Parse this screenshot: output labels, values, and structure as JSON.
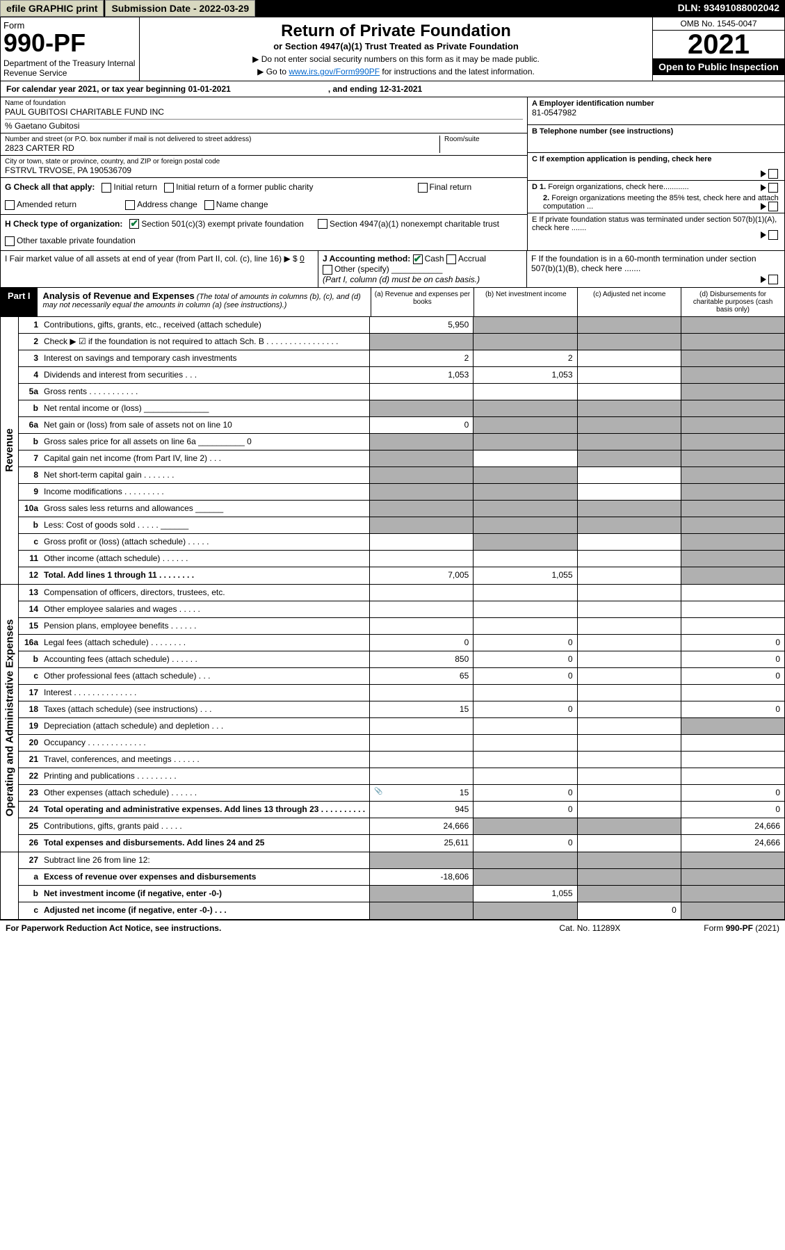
{
  "topbar": {
    "efile": "efile GRAPHIC print",
    "subdate_lbl": "Submission Date - 2022-03-29",
    "dln": "DLN: 93491088002042"
  },
  "header": {
    "form": "Form",
    "formno": "990-PF",
    "dept": "Department of the Treasury\nInternal Revenue Service",
    "title": "Return of Private Foundation",
    "subtitle": "or Section 4947(a)(1) Trust Treated as Private Foundation",
    "note1": "▶ Do not enter social security numbers on this form as it may be made public.",
    "note2_pre": "▶ Go to ",
    "note2_link": "www.irs.gov/Form990PF",
    "note2_post": " for instructions and the latest information.",
    "omb": "OMB No. 1545-0047",
    "year": "2021",
    "open": "Open to Public Inspection"
  },
  "calyear": {
    "pre": "For calendar year 2021, or tax year beginning 01-01-2021",
    "post": ", and ending 12-31-2021"
  },
  "info": {
    "name_lbl": "Name of foundation",
    "name": "PAUL GUBITOSI CHARITABLE FUND INC",
    "care": "% Gaetano Gubitosi",
    "addr_lbl": "Number and street (or P.O. box number if mail is not delivered to street address)",
    "addr": "2823 CARTER RD",
    "room_lbl": "Room/suite",
    "city_lbl": "City or town, state or province, country, and ZIP or foreign postal code",
    "city": "FSTRVL TRVOSE, PA  190536709",
    "a_lbl": "A Employer identification number",
    "a_val": "81-0547982",
    "b_lbl": "B Telephone number (see instructions)",
    "c_lbl": "C If exemption application is pending, check here",
    "d1": "D 1. Foreign organizations, check here............",
    "d2": "2. Foreign organizations meeting the 85% test, check here and attach computation ...",
    "e_lbl": "E  If private foundation status was terminated under section 507(b)(1)(A), check here .......",
    "f_lbl": "F  If the foundation is in a 60-month termination under section 507(b)(1)(B), check here .......",
    "g_lbl": "G Check all that apply:",
    "g_opts": [
      "Initial return",
      "Initial return of a former public charity",
      "Final return",
      "Amended return",
      "Address change",
      "Name change"
    ],
    "h_lbl": "H Check type of organization:",
    "h_opt1": "Section 501(c)(3) exempt private foundation",
    "h_opt2": "Section 4947(a)(1) nonexempt charitable trust",
    "h_opt3": "Other taxable private foundation",
    "i_lbl": "I Fair market value of all assets at end of year (from Part II, col. (c), line 16) ▶ $",
    "i_val": "0",
    "j_lbl": "J Accounting method:",
    "j_opts": [
      "Cash",
      "Accrual",
      "Other (specify)"
    ],
    "j_note": "(Part I, column (d) must be on cash basis.)"
  },
  "part1": {
    "tag": "Part I",
    "title": "Analysis of Revenue and Expenses",
    "title_note": " (The total of amounts in columns (b), (c), and (d) may not necessarily equal the amounts in column (a) (see instructions).)",
    "cols": [
      "(a)  Revenue and expenses per books",
      "(b)  Net investment income",
      "(c)  Adjusted net income",
      "(d)  Disbursements for charitable purposes (cash basis only)"
    ]
  },
  "sections": {
    "revenue": "Revenue",
    "expenses": "Operating and Administrative Expenses"
  },
  "rows": [
    {
      "n": "1",
      "lbl": "Contributions, gifts, grants, etc., received (attach schedule)",
      "a": "5,950",
      "b": "",
      "c": "",
      "d": "",
      "grey": [
        false,
        true,
        true,
        true
      ]
    },
    {
      "n": "2",
      "lbl": "Check ▶ ☑ if the foundation is not required to attach Sch. B   .   .   .   .   .   .   .   .   .   .   .   .   .   .   .   .",
      "a": "",
      "b": "",
      "c": "",
      "d": "",
      "grey": [
        true,
        true,
        true,
        true
      ]
    },
    {
      "n": "3",
      "lbl": "Interest on savings and temporary cash investments",
      "a": "2",
      "b": "2",
      "c": "",
      "d": "",
      "grey": [
        false,
        false,
        false,
        true
      ]
    },
    {
      "n": "4",
      "lbl": "Dividends and interest from securities   .   .   .",
      "a": "1,053",
      "b": "1,053",
      "c": "",
      "d": "",
      "grey": [
        false,
        false,
        false,
        true
      ]
    },
    {
      "n": "5a",
      "lbl": "Gross rents   .   .   .   .   .   .   .   .   .   .   .",
      "a": "",
      "b": "",
      "c": "",
      "d": "",
      "grey": [
        false,
        false,
        false,
        true
      ]
    },
    {
      "n": "b",
      "lbl": "Net rental income or (loss)  ______________",
      "a": "",
      "b": "",
      "c": "",
      "d": "",
      "grey": [
        true,
        true,
        true,
        true
      ]
    },
    {
      "n": "6a",
      "lbl": "Net gain or (loss) from sale of assets not on line 10",
      "a": "0",
      "b": "",
      "c": "",
      "d": "",
      "grey": [
        false,
        true,
        true,
        true
      ]
    },
    {
      "n": "b",
      "lbl": "Gross sales price for all assets on line 6a __________ 0",
      "a": "",
      "b": "",
      "c": "",
      "d": "",
      "grey": [
        true,
        true,
        true,
        true
      ]
    },
    {
      "n": "7",
      "lbl": "Capital gain net income (from Part IV, line 2)   .   .   .",
      "a": "",
      "b": "",
      "c": "",
      "d": "",
      "grey": [
        true,
        false,
        true,
        true
      ]
    },
    {
      "n": "8",
      "lbl": "Net short-term capital gain   .   .   .   .   .   .   .",
      "a": "",
      "b": "",
      "c": "",
      "d": "",
      "grey": [
        true,
        true,
        false,
        true
      ]
    },
    {
      "n": "9",
      "lbl": "Income modifications   .   .   .   .   .   .   .   .   .",
      "a": "",
      "b": "",
      "c": "",
      "d": "",
      "grey": [
        true,
        true,
        false,
        true
      ]
    },
    {
      "n": "10a",
      "lbl": "Gross sales less returns and allowances  ______",
      "a": "",
      "b": "",
      "c": "",
      "d": "",
      "grey": [
        true,
        true,
        true,
        true
      ]
    },
    {
      "n": "b",
      "lbl": "Less: Cost of goods sold   .   .   .   .   .  ______",
      "a": "",
      "b": "",
      "c": "",
      "d": "",
      "grey": [
        true,
        true,
        true,
        true
      ]
    },
    {
      "n": "c",
      "lbl": "Gross profit or (loss) (attach schedule)   .   .   .   .   .",
      "a": "",
      "b": "",
      "c": "",
      "d": "",
      "grey": [
        false,
        true,
        false,
        true
      ]
    },
    {
      "n": "11",
      "lbl": "Other income (attach schedule)   .   .   .   .   .   .",
      "a": "",
      "b": "",
      "c": "",
      "d": "",
      "grey": [
        false,
        false,
        false,
        true
      ]
    },
    {
      "n": "12",
      "lbl": "Total. Add lines 1 through 11   .   .   .   .   .   .   .   .",
      "a": "7,005",
      "b": "1,055",
      "c": "",
      "d": "",
      "bold": true,
      "grey": [
        false,
        false,
        false,
        true
      ]
    }
  ],
  "exp_rows": [
    {
      "n": "13",
      "lbl": "Compensation of officers, directors, trustees, etc.",
      "a": "",
      "b": "",
      "c": "",
      "d": "",
      "grey": [
        false,
        false,
        false,
        false
      ]
    },
    {
      "n": "14",
      "lbl": "Other employee salaries and wages   .   .   .   .   .",
      "a": "",
      "b": "",
      "c": "",
      "d": "",
      "grey": [
        false,
        false,
        false,
        false
      ]
    },
    {
      "n": "15",
      "lbl": "Pension plans, employee benefits   .   .   .   .   .   .",
      "a": "",
      "b": "",
      "c": "",
      "d": "",
      "grey": [
        false,
        false,
        false,
        false
      ]
    },
    {
      "n": "16a",
      "lbl": "Legal fees (attach schedule)   .   .   .   .   .   .   .   .",
      "a": "0",
      "b": "0",
      "c": "",
      "d": "0",
      "grey": [
        false,
        false,
        false,
        false
      ]
    },
    {
      "n": "b",
      "lbl": "Accounting fees (attach schedule)   .   .   .   .   .   .",
      "a": "850",
      "b": "0",
      "c": "",
      "d": "0",
      "grey": [
        false,
        false,
        false,
        false
      ]
    },
    {
      "n": "c",
      "lbl": "Other professional fees (attach schedule)   .   .   .",
      "a": "65",
      "b": "0",
      "c": "",
      "d": "0",
      "grey": [
        false,
        false,
        false,
        false
      ]
    },
    {
      "n": "17",
      "lbl": "Interest   .   .   .   .   .   .   .   .   .   .   .   .   .   .",
      "a": "",
      "b": "",
      "c": "",
      "d": "",
      "grey": [
        false,
        false,
        false,
        false
      ]
    },
    {
      "n": "18",
      "lbl": "Taxes (attach schedule) (see instructions)   .   .   .",
      "a": "15",
      "b": "0",
      "c": "",
      "d": "0",
      "grey": [
        false,
        false,
        false,
        false
      ]
    },
    {
      "n": "19",
      "lbl": "Depreciation (attach schedule) and depletion   .   .   .",
      "a": "",
      "b": "",
      "c": "",
      "d": "",
      "grey": [
        false,
        false,
        false,
        true
      ]
    },
    {
      "n": "20",
      "lbl": "Occupancy   .   .   .   .   .   .   .   .   .   .   .   .   .",
      "a": "",
      "b": "",
      "c": "",
      "d": "",
      "grey": [
        false,
        false,
        false,
        false
      ]
    },
    {
      "n": "21",
      "lbl": "Travel, conferences, and meetings   .   .   .   .   .   .",
      "a": "",
      "b": "",
      "c": "",
      "d": "",
      "grey": [
        false,
        false,
        false,
        false
      ]
    },
    {
      "n": "22",
      "lbl": "Printing and publications   .   .   .   .   .   .   .   .   .",
      "a": "",
      "b": "",
      "c": "",
      "d": "",
      "grey": [
        false,
        false,
        false,
        false
      ]
    },
    {
      "n": "23",
      "lbl": "Other expenses (attach schedule)   .   .   .   .   .   .",
      "a": "15",
      "b": "0",
      "c": "",
      "d": "0",
      "ico": true,
      "grey": [
        false,
        false,
        false,
        false
      ]
    },
    {
      "n": "24",
      "lbl": "Total operating and administrative expenses. Add lines 13 through 23   .   .   .   .   .   .   .   .   .   .",
      "a": "945",
      "b": "0",
      "c": "",
      "d": "0",
      "bold": true,
      "grey": [
        false,
        false,
        false,
        false
      ]
    },
    {
      "n": "25",
      "lbl": "Contributions, gifts, grants paid   .   .   .   .   .",
      "a": "24,666",
      "b": "",
      "c": "",
      "d": "24,666",
      "grey": [
        false,
        true,
        true,
        false
      ]
    },
    {
      "n": "26",
      "lbl": "Total expenses and disbursements. Add lines 24 and 25",
      "a": "25,611",
      "b": "0",
      "c": "",
      "d": "24,666",
      "bold": true,
      "grey": [
        false,
        false,
        false,
        false
      ]
    }
  ],
  "bottom_rows": [
    {
      "n": "27",
      "lbl": "Subtract line 26 from line 12:",
      "a": "",
      "b": "",
      "c": "",
      "d": "",
      "grey": [
        true,
        true,
        true,
        true
      ]
    },
    {
      "n": "a",
      "lbl": "Excess of revenue over expenses and disbursements",
      "a": "-18,606",
      "b": "",
      "c": "",
      "d": "",
      "bold": true,
      "grey": [
        false,
        true,
        true,
        true
      ]
    },
    {
      "n": "b",
      "lbl": "Net investment income (if negative, enter -0-)",
      "a": "",
      "b": "1,055",
      "c": "",
      "d": "",
      "bold": true,
      "grey": [
        true,
        false,
        true,
        true
      ]
    },
    {
      "n": "c",
      "lbl": "Adjusted net income (if negative, enter -0-)   .   .   .",
      "a": "",
      "b": "",
      "c": "0",
      "d": "",
      "bold": true,
      "grey": [
        true,
        true,
        false,
        true
      ]
    }
  ],
  "footer": {
    "left": "For Paperwork Reduction Act Notice, see instructions.",
    "mid": "Cat. No. 11289X",
    "right": "Form 990-PF (2021)"
  }
}
